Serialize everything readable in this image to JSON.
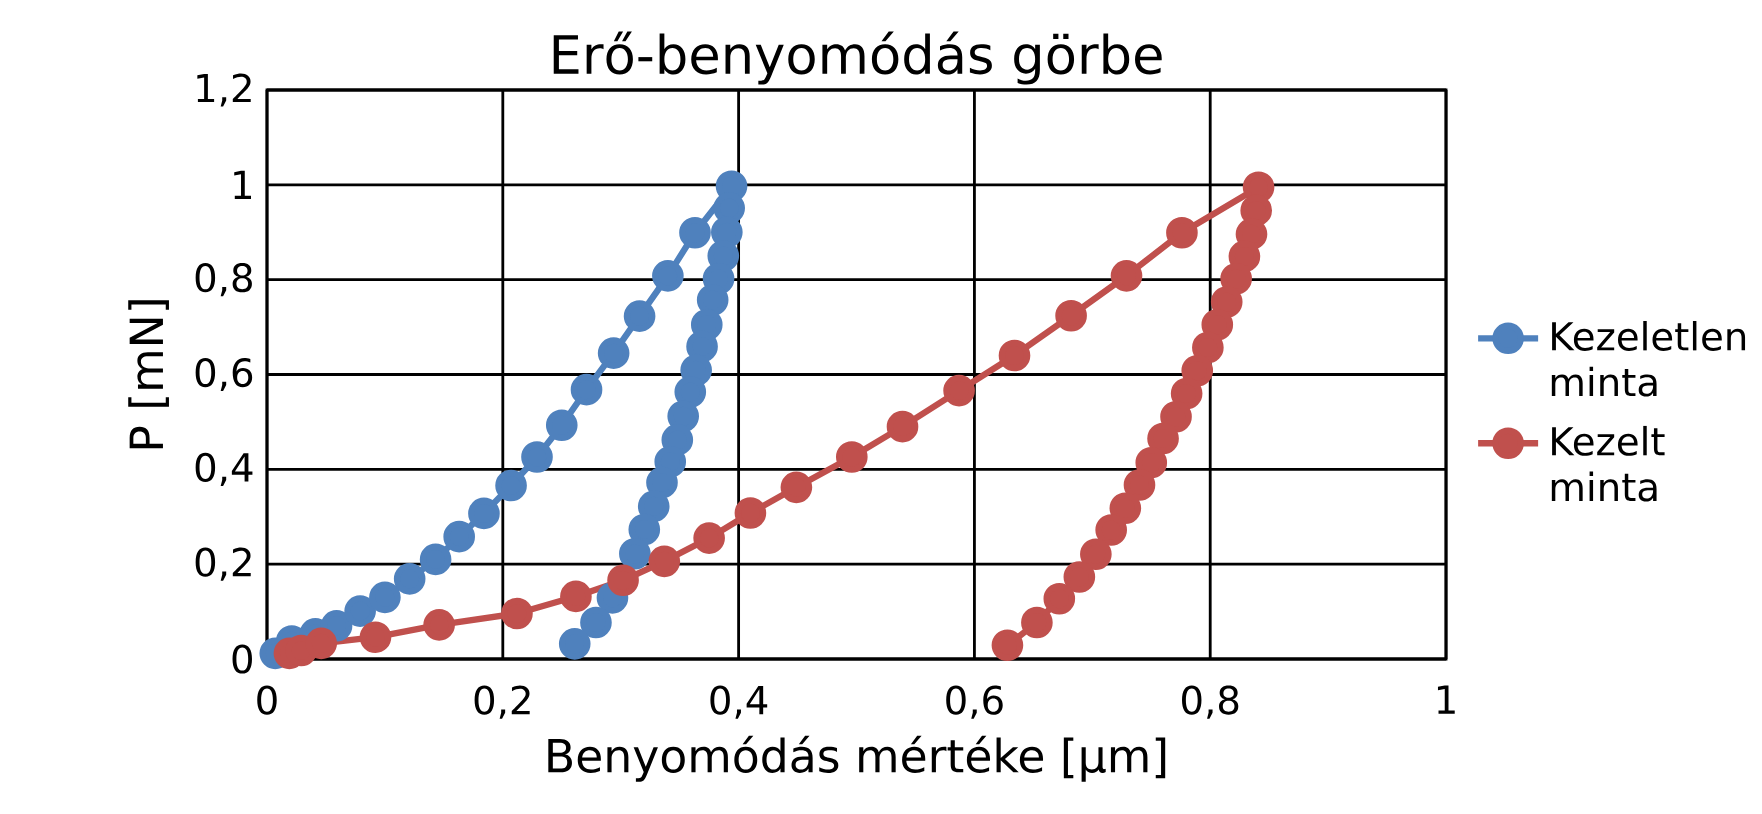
{
  "chart_data": {
    "type": "line",
    "title": "Erő-benyomódás görbe",
    "xlabel": "Benyomódás mértéke [μm]",
    "ylabel": "P [mN]",
    "xlim": [
      0,
      1
    ],
    "ylim": [
      0,
      1.2
    ],
    "xticks": [
      0,
      {
        "value": 0.2,
        "label": "0,2"
      },
      {
        "value": 0.4,
        "label": "0,4"
      },
      {
        "value": 0.6,
        "label": "0,6"
      },
      {
        "value": 0.8,
        "label": "0,8"
      },
      1
    ],
    "yticks": [
      0,
      {
        "value": 0.2,
        "label": "0,2"
      },
      {
        "value": 0.4,
        "label": "0,4"
      },
      {
        "value": 0.6,
        "label": "0,6"
      },
      {
        "value": 0.8,
        "label": "0,8"
      },
      1,
      {
        "value": 1.2,
        "label": "1,2"
      }
    ],
    "grid": true,
    "legend": "right",
    "marker": "circle",
    "line_style": "solid",
    "series": [
      {
        "name": "Kezeletlen minta",
        "color": "#4f81bd",
        "x": [
          0.007,
          0.021,
          0.041,
          0.059,
          0.079,
          0.1,
          0.121,
          0.143,
          0.163,
          0.184,
          0.207,
          0.229,
          0.25,
          0.271,
          0.294,
          0.316,
          0.34,
          0.363,
          0.394,
          0.392,
          0.39,
          0.387,
          0.383,
          0.378,
          0.373,
          0.369,
          0.364,
          0.359,
          0.353,
          0.348,
          0.342,
          0.335,
          0.328,
          0.32,
          0.312,
          0.304,
          0.293,
          0.279,
          0.261
        ],
        "values": [
          0.012,
          0.038,
          0.053,
          0.07,
          0.101,
          0.13,
          0.169,
          0.21,
          0.258,
          0.307,
          0.366,
          0.426,
          0.493,
          0.568,
          0.645,
          0.723,
          0.808,
          0.899,
          0.997,
          0.951,
          0.9,
          0.85,
          0.802,
          0.757,
          0.705,
          0.659,
          0.609,
          0.563,
          0.512,
          0.462,
          0.416,
          0.372,
          0.322,
          0.273,
          0.222,
          null,
          0.129,
          0.077,
          0.032
        ]
      },
      {
        "name": "Kezelt minta",
        "color": "#c0504d",
        "x": [
          0.019,
          0.029,
          0.046,
          0.092,
          0.146,
          0.212,
          0.262,
          0.302,
          0.337,
          0.375,
          0.41,
          0.449,
          0.496,
          0.539,
          0.587,
          0.634,
          0.682,
          0.729,
          0.776,
          0.841,
          0.839,
          0.835,
          0.829,
          0.822,
          0.814,
          0.806,
          0.798,
          0.789,
          0.78,
          0.771,
          0.76,
          0.75,
          0.74,
          0.728,
          0.716,
          0.703,
          0.689,
          0.672,
          0.653,
          0.628
        ],
        "values": [
          0.012,
          0.018,
          0.033,
          0.046,
          0.072,
          0.096,
          0.132,
          0.166,
          0.206,
          0.255,
          0.308,
          0.362,
          0.426,
          0.49,
          0.566,
          0.64,
          0.724,
          0.808,
          0.899,
          0.995,
          0.946,
          0.896,
          0.849,
          0.802,
          0.753,
          0.705,
          0.657,
          0.608,
          0.56,
          0.511,
          0.465,
          0.414,
          0.367,
          0.318,
          0.272,
          0.221,
          0.173,
          0.127,
          0.077,
          0.029
        ]
      }
    ]
  }
}
